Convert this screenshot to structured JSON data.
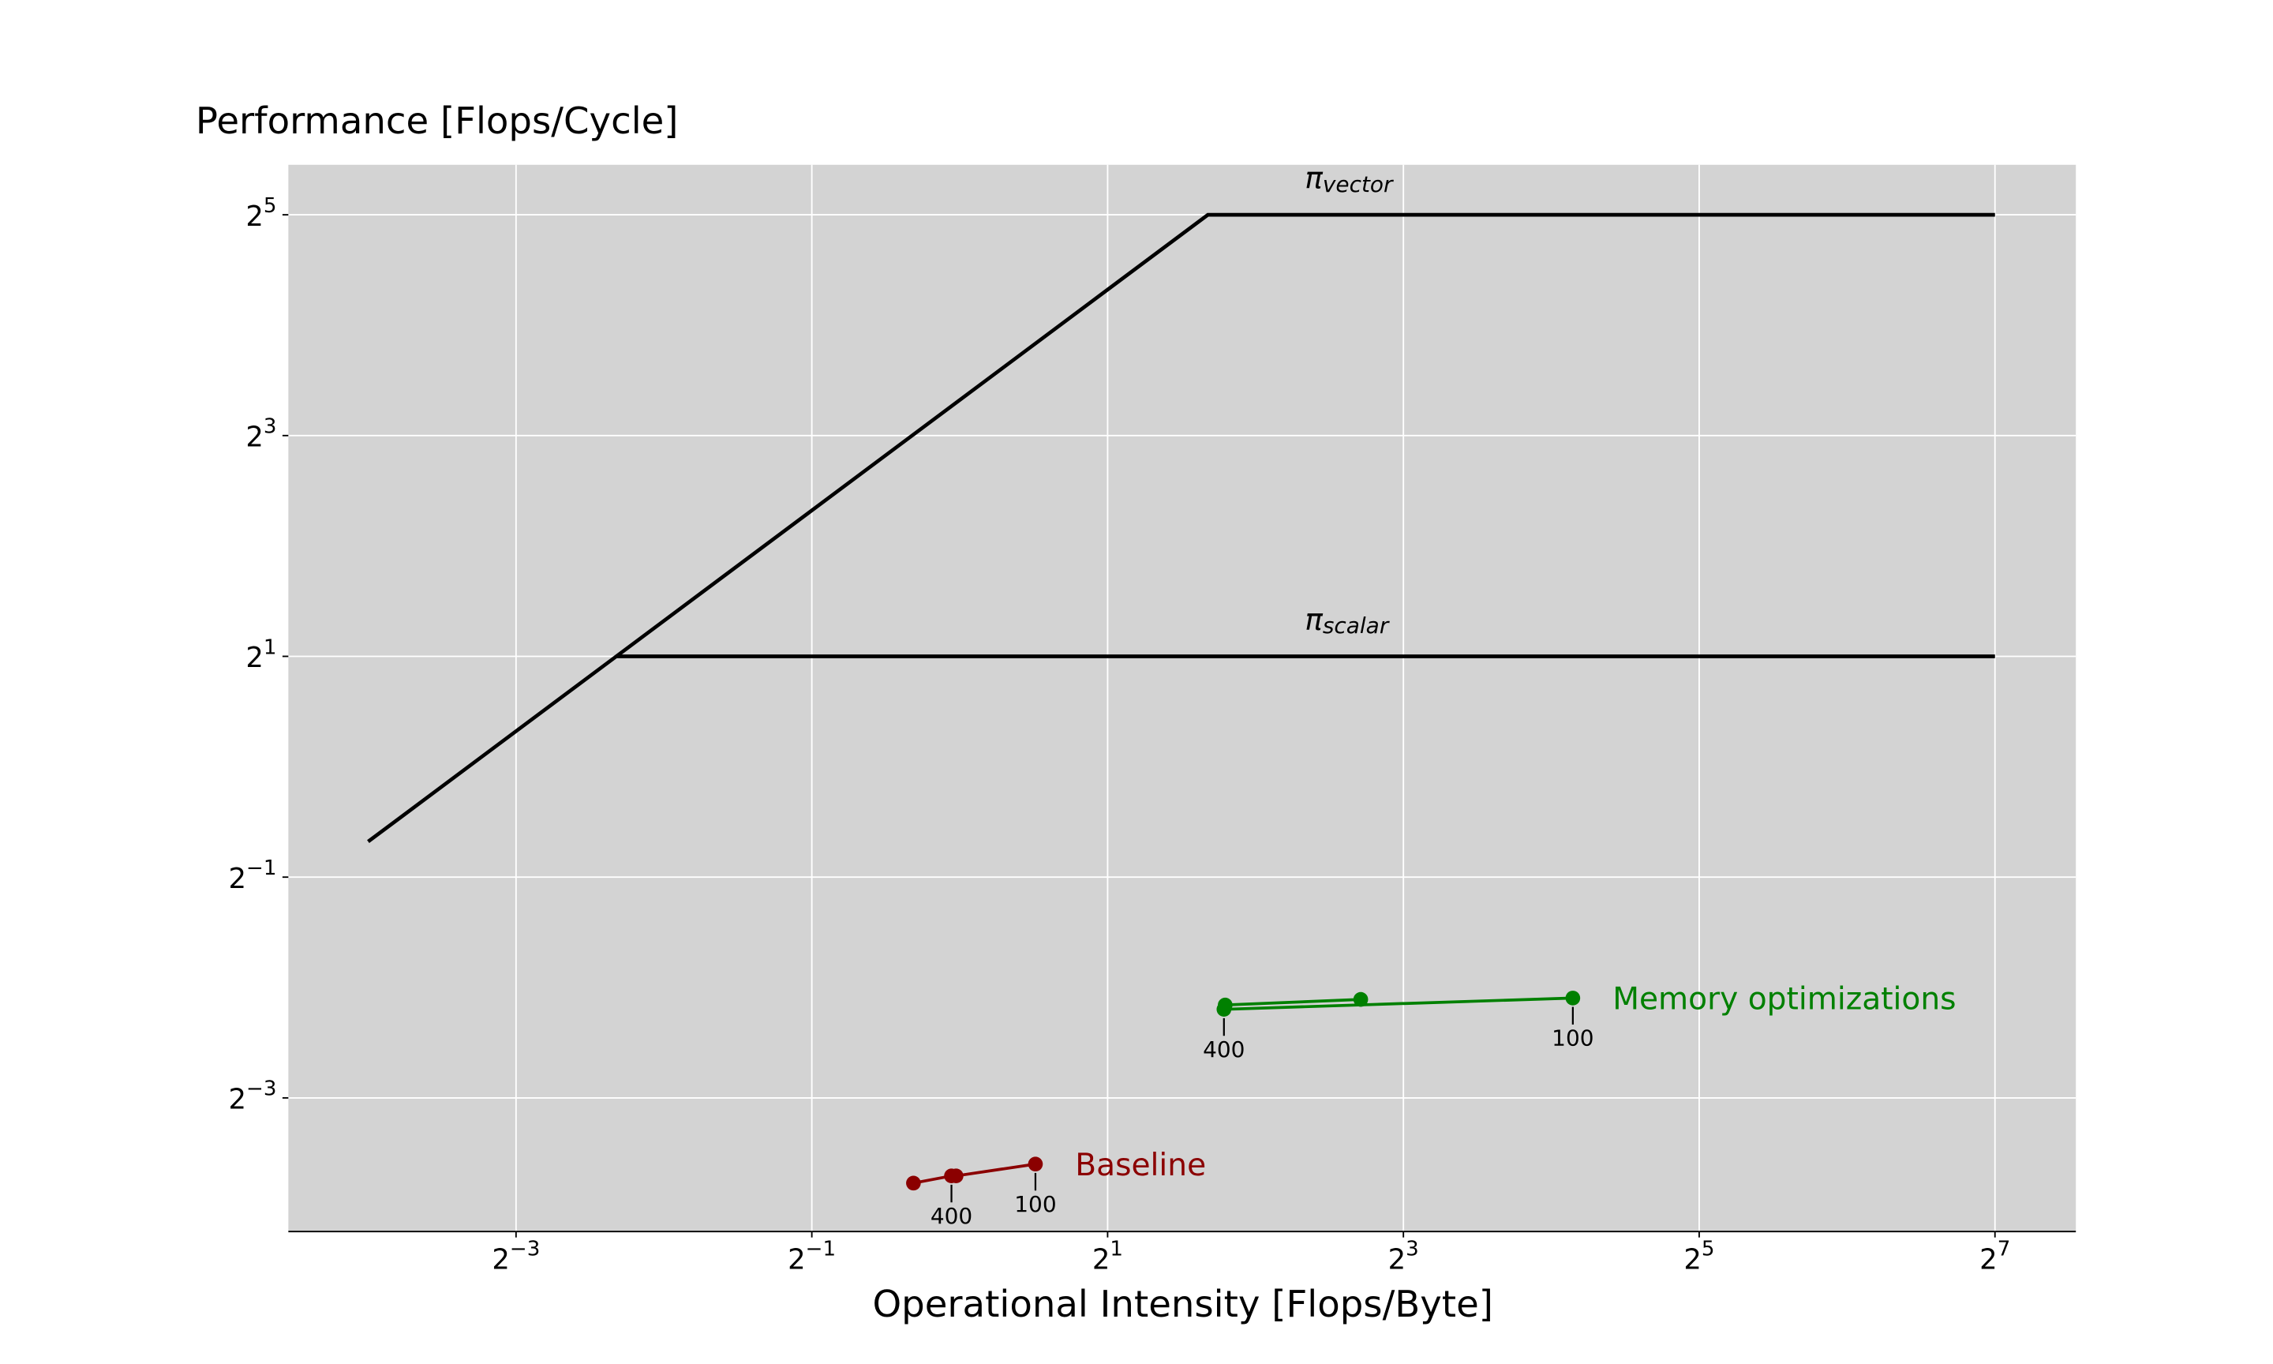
{
  "chart_data": {
    "type": "line",
    "x_label": "Operational Intensity [Flops/Byte]",
    "y_label": "Performance [Flops/Cycle]",
    "log_base": 2,
    "xscale": "log",
    "yscale": "log",
    "grid": true,
    "xlim": [
      0.043,
      187
    ],
    "ylim": [
      0.054,
      43.8
    ],
    "xticks": [
      {
        "value": 0.125,
        "label": "2^−3"
      },
      {
        "value": 0.5,
        "label": "2^−1"
      },
      {
        "value": 2,
        "label": "2^1"
      },
      {
        "value": 8,
        "label": "2^3"
      },
      {
        "value": 32,
        "label": "2^5"
      },
      {
        "value": 128,
        "label": "2^7"
      }
    ],
    "yticks": [
      {
        "value": 0.125,
        "label": "2^−3"
      },
      {
        "value": 0.5,
        "label": "2^−1"
      },
      {
        "value": 2,
        "label": "2^1"
      },
      {
        "value": 8,
        "label": "2^3"
      },
      {
        "value": 32,
        "label": "2^5"
      }
    ],
    "roofs": [
      {
        "symbol": "π",
        "subscript": "vector",
        "color": "#000000",
        "x": [
          0.0625,
          3.2,
          128
        ],
        "values": [
          0.625,
          32,
          32
        ]
      },
      {
        "symbol": "π",
        "subscript": "scalar",
        "color": "#000000",
        "x": [
          0.2,
          128
        ],
        "values": [
          2,
          2
        ]
      }
    ],
    "series": [
      {
        "name": "Baseline",
        "color": "#8b0000",
        "x": [
          0.805,
          0.962,
          0.983,
          1.426
        ],
        "values": [
          0.0732,
          0.0766,
          0.0766,
          0.0825
        ],
        "point_labels": [
          null,
          "400",
          null,
          "100"
        ]
      },
      {
        "name": "Memory optimizations",
        "color": "#008000",
        "x": [
          6.55,
          3.47,
          3.45,
          17.7
        ],
        "values": [
          0.232,
          0.224,
          0.218,
          0.234
        ],
        "point_labels": [
          null,
          null,
          "400",
          "100"
        ]
      }
    ]
  }
}
